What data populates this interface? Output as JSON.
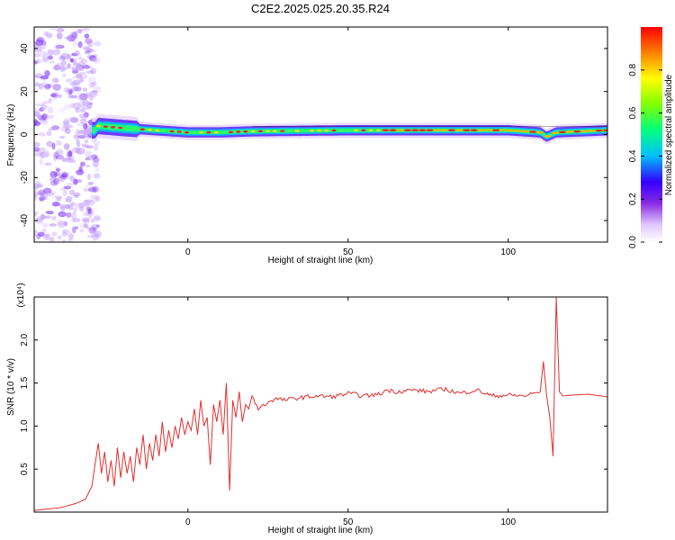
{
  "figure": {
    "title": "C2E2.2025.025.20.35.R24"
  },
  "chart_data": [
    {
      "type": "heatmap",
      "xlabel": "Height of straight line (km)",
      "ylabel": "Frequency (Hz)",
      "xlim": [
        -48,
        131
      ],
      "ylim": [
        -50,
        50
      ],
      "xticks": [
        0,
        50,
        100
      ],
      "yticks": [
        -40,
        -20,
        0,
        20,
        40
      ],
      "colorbar": {
        "label": "Normalized spectral amplitude",
        "range": [
          0,
          1
        ],
        "ticks": [
          "0.0",
          "0.2",
          "0.4",
          "0.6",
          "0.8"
        ]
      },
      "ridge": {
        "frequency": 2,
        "description_points": [
          [
            -28,
            4
          ],
          [
            -20,
            3
          ],
          [
            -10,
            2
          ],
          [
            0,
            1
          ],
          [
            10,
            1
          ],
          [
            20,
            1.5
          ],
          [
            50,
            2
          ],
          [
            80,
            2
          ],
          [
            100,
            2
          ],
          [
            110,
            1
          ],
          [
            112,
            -1
          ],
          [
            115,
            1
          ],
          [
            131,
            2
          ]
        ]
      }
    },
    {
      "type": "line",
      "xlabel": "Height of straight line (km)",
      "ylabel": "SNR (10 * v/v)",
      "yscale_label": "(x10⁴)",
      "xlim": [
        -48,
        131
      ],
      "ylim": [
        0,
        2.5
      ],
      "xticks": [
        0,
        50,
        100
      ],
      "yticks": [
        0.5,
        1.0,
        1.5,
        2.0
      ],
      "color": "#e03030",
      "series": [
        {
          "x": [
            -48,
            -40,
            -35,
            -32,
            -30,
            -29,
            -28,
            -27,
            -26,
            -25,
            -24,
            -23,
            -22,
            -21,
            -20,
            -19,
            -18,
            -17,
            -16,
            -15,
            -14,
            -13,
            -12,
            -11,
            -10,
            -9,
            -8,
            -7,
            -6,
            -5,
            -4,
            -3,
            -2,
            -1,
            0,
            1,
            2,
            3,
            4,
            5,
            6,
            7,
            8,
            9,
            10,
            11,
            12,
            13,
            14,
            15,
            16,
            17,
            18,
            19,
            20,
            22,
            24,
            26,
            28,
            30,
            35,
            40,
            45,
            50,
            55,
            60,
            62,
            65,
            70,
            75,
            80,
            85,
            90,
            95,
            100,
            105,
            108,
            110,
            111,
            112,
            113,
            114,
            115,
            116,
            117,
            120,
            125,
            131
          ],
          "y": [
            0.02,
            0.05,
            0.1,
            0.15,
            0.3,
            0.55,
            0.8,
            0.45,
            0.7,
            0.35,
            0.6,
            0.3,
            0.75,
            0.4,
            0.7,
            0.45,
            0.65,
            0.35,
            0.75,
            0.55,
            0.9,
            0.5,
            0.8,
            0.6,
            0.9,
            0.65,
            1.05,
            0.7,
            0.95,
            0.75,
            1.0,
            0.85,
            1.1,
            0.9,
            1.05,
            0.95,
            1.2,
            0.9,
            1.3,
            1.0,
            1.1,
            0.55,
            1.25,
            1.05,
            1.3,
            0.9,
            1.5,
            0.25,
            1.3,
            1.1,
            1.4,
            1.05,
            1.25,
            1.2,
            1.35,
            1.2,
            1.25,
            1.3,
            1.32,
            1.3,
            1.33,
            1.35,
            1.34,
            1.38,
            1.35,
            1.37,
            1.42,
            1.4,
            1.42,
            1.4,
            1.43,
            1.38,
            1.42,
            1.35,
            1.36,
            1.35,
            1.38,
            1.4,
            1.75,
            1.35,
            1.1,
            0.65,
            2.5,
            1.4,
            1.35,
            1.36,
            1.37,
            1.34
          ]
        }
      ]
    }
  ]
}
